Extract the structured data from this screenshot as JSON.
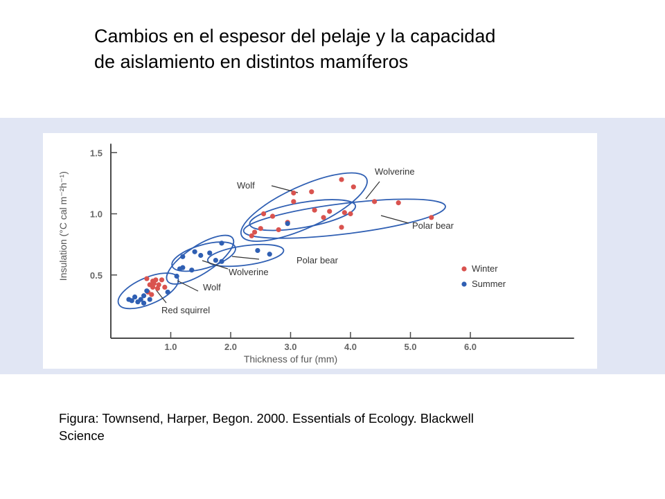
{
  "slide": {
    "title_lines": [
      "Cambios en el espesor del pelaje y la capacidad",
      "de aislamiento en distintos mamíferos"
    ],
    "caption_lines": [
      "Figura: Townsend, Harper, Begon. 2000. Essentials of Ecology. Blackwell",
      "Science"
    ]
  },
  "chart_data": {
    "type": "scatter",
    "xlabel": "Thickness of fur (mm)",
    "ylabel": "Insulation (°C cal m⁻²h⁻¹)",
    "xlim": [
      0,
      7.5
    ],
    "ylim": [
      0,
      1.55
    ],
    "x_ticks": [
      1.0,
      2.0,
      3.0,
      4.0,
      5.0,
      6.0
    ],
    "x_tick_labels": [
      "1.0",
      "2.0",
      "3.0",
      "4.0",
      "5.0",
      "6.0"
    ],
    "y_ticks": [
      0.5,
      1.0,
      1.5
    ],
    "y_tick_labels": [
      "0.5",
      "1.0",
      "1.5"
    ],
    "grid": false,
    "legend_position": "right",
    "colors": {
      "winter": "#d9534f",
      "summer": "#2f5fb3",
      "outline": "#2f5fb3",
      "axis": "#4a4a4a"
    },
    "series": [
      {
        "name": "Winter",
        "color": "#d9534f",
        "points": [
          [
            0.6,
            0.47
          ],
          [
            0.7,
            0.45
          ],
          [
            0.75,
            0.46
          ],
          [
            0.85,
            0.46
          ],
          [
            0.65,
            0.42
          ],
          [
            0.72,
            0.43
          ],
          [
            0.8,
            0.42
          ],
          [
            0.9,
            0.4
          ],
          [
            0.7,
            0.4
          ],
          [
            0.78,
            0.39
          ],
          [
            0.68,
            0.34
          ],
          [
            0.62,
            0.36
          ],
          [
            3.05,
            1.17
          ],
          [
            3.35,
            1.18
          ],
          [
            3.05,
            1.1
          ],
          [
            3.85,
            1.28
          ],
          [
            4.05,
            1.22
          ],
          [
            3.4,
            1.03
          ],
          [
            3.65,
            1.02
          ],
          [
            3.9,
            1.01
          ],
          [
            4.0,
            1.0
          ],
          [
            2.7,
            0.98
          ],
          [
            3.55,
            0.97
          ],
          [
            2.55,
            1.0
          ],
          [
            2.95,
            0.93
          ],
          [
            2.5,
            0.88
          ],
          [
            2.4,
            0.85
          ],
          [
            2.8,
            0.87
          ],
          [
            3.85,
            0.89
          ],
          [
            2.35,
            0.82
          ],
          [
            4.4,
            1.1
          ],
          [
            4.8,
            1.09
          ],
          [
            5.35,
            0.97
          ]
        ]
      },
      {
        "name": "Summer",
        "color": "#2f5fb3",
        "points": [
          [
            0.3,
            0.3
          ],
          [
            0.4,
            0.32
          ],
          [
            0.5,
            0.3
          ],
          [
            0.55,
            0.33
          ],
          [
            0.65,
            0.3
          ],
          [
            0.45,
            0.28
          ],
          [
            0.55,
            0.27
          ],
          [
            0.35,
            0.29
          ],
          [
            0.6,
            0.37
          ],
          [
            0.95,
            0.36
          ],
          [
            1.1,
            0.49
          ],
          [
            1.15,
            0.55
          ],
          [
            1.2,
            0.56
          ],
          [
            1.35,
            0.54
          ],
          [
            1.2,
            0.65
          ],
          [
            1.4,
            0.69
          ],
          [
            1.5,
            0.66
          ],
          [
            1.65,
            0.68
          ],
          [
            1.85,
            0.76
          ],
          [
            1.75,
            0.62
          ],
          [
            1.85,
            0.61
          ],
          [
            2.45,
            0.7
          ],
          [
            2.65,
            0.67
          ],
          [
            2.95,
            0.92
          ]
        ]
      }
    ],
    "annotations": [
      {
        "text": "Wolf",
        "group": "winter"
      },
      {
        "text": "Wolverine",
        "group": "winter"
      },
      {
        "text": "Polar bear",
        "group": "winter"
      },
      {
        "text": "Polar bear",
        "group": "summer"
      },
      {
        "text": "Wolverine",
        "group": "summer"
      },
      {
        "text": "Wolf",
        "group": "summer"
      },
      {
        "text": "Red squirrel",
        "group": "both"
      }
    ]
  }
}
